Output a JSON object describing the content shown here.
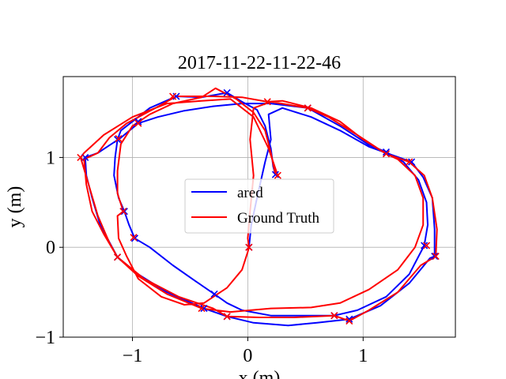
{
  "chart_data": {
    "type": "line",
    "title": "2017-11-22-11-22-46",
    "xlabel": "x (m)",
    "ylabel": "y (m)",
    "xlim": [
      -1.6,
      1.8
    ],
    "ylim": [
      -1.0,
      1.9
    ],
    "xticks": [
      -1,
      0,
      1
    ],
    "yticks": [
      -1,
      0,
      1
    ],
    "xtick_labels": [
      "−1",
      "0",
      "1"
    ],
    "ytick_labels": [
      "−1",
      "0",
      "1"
    ],
    "grid": true,
    "legend_position": "center",
    "series": [
      {
        "name": "ared",
        "color": "#0000ff",
        "marker": "x",
        "points": [
          [
            0.24,
            0.81
          ],
          [
            0.22,
            0.9
          ],
          [
            0.2,
            1.1
          ],
          [
            0.15,
            1.35
          ],
          [
            0.08,
            1.53
          ],
          [
            -0.05,
            1.62
          ],
          [
            -0.18,
            1.72
          ],
          [
            -0.4,
            1.67
          ],
          [
            -0.62,
            1.68
          ],
          [
            -0.85,
            1.55
          ],
          [
            -1.0,
            1.4
          ],
          [
            -1.1,
            1.3
          ],
          [
            -1.13,
            1.2
          ],
          [
            -1.15,
            1.0
          ],
          [
            -1.16,
            0.8
          ],
          [
            -1.12,
            0.55
          ],
          [
            -1.07,
            0.4
          ],
          [
            -1.03,
            0.25
          ],
          [
            -0.98,
            0.1
          ],
          [
            -0.85,
            0.0
          ],
          [
            -0.65,
            -0.2
          ],
          [
            -0.45,
            -0.38
          ],
          [
            -0.29,
            -0.52
          ],
          [
            -0.18,
            -0.62
          ],
          [
            -0.05,
            -0.7
          ],
          [
            0.2,
            -0.76
          ],
          [
            0.55,
            -0.76
          ],
          [
            0.75,
            -0.76
          ],
          [
            0.95,
            -0.7
          ],
          [
            1.2,
            -0.55
          ],
          [
            1.4,
            -0.3
          ],
          [
            1.53,
            0.02
          ],
          [
            1.56,
            0.25
          ],
          [
            1.55,
            0.5
          ],
          [
            1.48,
            0.75
          ],
          [
            1.35,
            0.95
          ],
          [
            1.2,
            1.06
          ],
          [
            1.05,
            1.14
          ],
          [
            0.8,
            1.35
          ],
          [
            0.52,
            1.55
          ],
          [
            0.2,
            1.6
          ],
          [
            -0.05,
            1.6
          ],
          [
            -0.3,
            1.57
          ],
          [
            -0.55,
            1.52
          ],
          [
            -0.78,
            1.45
          ],
          [
            -0.95,
            1.38
          ],
          [
            -1.1,
            1.22
          ],
          [
            -1.3,
            1.05
          ],
          [
            -1.41,
            1.0
          ],
          [
            -1.4,
            0.8
          ],
          [
            -1.35,
            0.55
          ],
          [
            -1.28,
            0.25
          ],
          [
            -1.13,
            -0.11
          ],
          [
            -0.95,
            -0.3
          ],
          [
            -0.7,
            -0.5
          ],
          [
            -0.38,
            -0.68
          ],
          [
            -0.18,
            -0.77
          ],
          [
            0.05,
            -0.84
          ],
          [
            0.35,
            -0.87
          ],
          [
            0.6,
            -0.84
          ],
          [
            0.88,
            -0.8
          ],
          [
            1.15,
            -0.65
          ],
          [
            1.4,
            -0.4
          ],
          [
            1.58,
            -0.12
          ],
          [
            1.62,
            -0.1
          ],
          [
            1.62,
            0.2
          ],
          [
            1.6,
            0.55
          ],
          [
            1.52,
            0.78
          ],
          [
            1.42,
            0.95
          ],
          [
            1.2,
            1.05
          ],
          [
            1.05,
            1.12
          ],
          [
            0.8,
            1.3
          ],
          [
            0.55,
            1.45
          ],
          [
            0.3,
            1.55
          ],
          [
            0.18,
            1.48
          ],
          [
            0.2,
            1.2
          ],
          [
            0.15,
            0.95
          ],
          [
            0.08,
            0.55
          ],
          [
            0.03,
            0.25
          ],
          [
            0.01,
            0.0
          ]
        ],
        "marker_points": [
          [
            0.24,
            0.81
          ],
          [
            -0.18,
            1.72
          ],
          [
            -0.62,
            1.68
          ],
          [
            -0.95,
            1.4
          ],
          [
            -1.13,
            1.2
          ],
          [
            -1.07,
            0.4
          ],
          [
            -0.98,
            0.1
          ],
          [
            -0.29,
            -0.52
          ],
          [
            0.75,
            -0.76
          ],
          [
            1.53,
            0.02
          ],
          [
            1.2,
            1.06
          ],
          [
            0.52,
            1.55
          ],
          [
            -1.41,
            1.0
          ],
          [
            -1.13,
            -0.11
          ],
          [
            -0.38,
            -0.68
          ],
          [
            -0.18,
            -0.77
          ],
          [
            0.88,
            -0.8
          ],
          [
            1.62,
            -0.1
          ],
          [
            1.42,
            0.95
          ],
          [
            0.01,
            0.0
          ]
        ]
      },
      {
        "name": "Ground Truth",
        "color": "#ff0000",
        "marker": "x",
        "points": [
          [
            0.01,
            0.0
          ],
          [
            0.0,
            -0.05
          ],
          [
            -0.05,
            -0.25
          ],
          [
            -0.18,
            -0.45
          ],
          [
            -0.38,
            -0.62
          ],
          [
            -0.55,
            -0.64
          ],
          [
            -0.75,
            -0.55
          ],
          [
            -0.95,
            -0.35
          ],
          [
            -1.05,
            -0.1
          ],
          [
            -1.12,
            0.1
          ],
          [
            -1.13,
            0.35
          ],
          [
            -1.08,
            0.4
          ],
          [
            -1.13,
            0.6
          ],
          [
            -1.13,
            0.85
          ],
          [
            -1.1,
            1.15
          ],
          [
            -1.0,
            1.35
          ],
          [
            -0.85,
            1.48
          ],
          [
            -0.65,
            1.6
          ],
          [
            -0.4,
            1.67
          ],
          [
            -0.28,
            1.77
          ],
          [
            -0.1,
            1.65
          ],
          [
            0.05,
            1.5
          ],
          [
            0.15,
            1.3
          ],
          [
            0.2,
            1.05
          ],
          [
            0.24,
            0.81
          ],
          [
            0.26,
            0.8
          ],
          [
            0.18,
            1.1
          ],
          [
            0.05,
            1.45
          ],
          [
            -0.15,
            1.65
          ],
          [
            -0.4,
            1.63
          ],
          [
            -0.7,
            1.6
          ],
          [
            -1.0,
            1.45
          ],
          [
            -1.25,
            1.25
          ],
          [
            -1.42,
            1.05
          ],
          [
            -1.45,
            1.0
          ],
          [
            -1.38,
            0.7
          ],
          [
            -1.3,
            0.35
          ],
          [
            -1.2,
            0.05
          ],
          [
            -1.13,
            -0.11
          ],
          [
            -0.95,
            -0.32
          ],
          [
            -0.7,
            -0.52
          ],
          [
            -0.4,
            -0.68
          ],
          [
            -0.15,
            -0.72
          ],
          [
            0.2,
            -0.68
          ],
          [
            0.55,
            -0.67
          ],
          [
            0.8,
            -0.62
          ],
          [
            1.05,
            -0.47
          ],
          [
            1.3,
            -0.25
          ],
          [
            1.45,
            0.0
          ],
          [
            1.52,
            0.25
          ],
          [
            1.52,
            0.55
          ],
          [
            1.45,
            0.8
          ],
          [
            1.3,
            0.98
          ],
          [
            1.2,
            1.04
          ],
          [
            1.0,
            1.2
          ],
          [
            0.8,
            1.4
          ],
          [
            0.55,
            1.55
          ],
          [
            0.3,
            1.63
          ],
          [
            0.17,
            1.62
          ],
          [
            -0.05,
            1.67
          ],
          [
            -0.3,
            1.68
          ],
          [
            -0.62,
            1.68
          ],
          [
            -0.8,
            1.55
          ],
          [
            -1.05,
            1.38
          ],
          [
            -1.2,
            1.22
          ],
          [
            -1.3,
            1.05
          ],
          [
            -1.42,
            0.98
          ],
          [
            -1.4,
            0.7
          ],
          [
            -1.35,
            0.4
          ],
          [
            -1.25,
            0.15
          ],
          [
            -1.13,
            -0.11
          ],
          [
            -0.9,
            -0.35
          ],
          [
            -0.6,
            -0.55
          ],
          [
            -0.3,
            -0.68
          ],
          [
            -0.18,
            -0.77
          ],
          [
            0.1,
            -0.78
          ],
          [
            0.4,
            -0.78
          ],
          [
            0.75,
            -0.76
          ],
          [
            0.88,
            -0.82
          ],
          [
            1.05,
            -0.7
          ],
          [
            1.3,
            -0.5
          ],
          [
            1.5,
            -0.2
          ],
          [
            1.63,
            -0.1
          ],
          [
            1.64,
            0.2
          ],
          [
            1.6,
            0.55
          ],
          [
            1.53,
            0.8
          ],
          [
            1.4,
            0.95
          ],
          [
            1.2,
            1.04
          ],
          [
            0.95,
            1.25
          ],
          [
            0.7,
            1.45
          ],
          [
            0.52,
            1.55
          ],
          [
            0.2,
            1.62
          ],
          [
            0.05,
            1.55
          ],
          [
            0.02,
            1.2
          ],
          [
            0.05,
            0.8
          ],
          [
            0.02,
            0.4
          ],
          [
            0.0,
            0.1
          ],
          [
            0.01,
            0.0
          ]
        ],
        "marker_points": [
          [
            0.26,
            0.8
          ],
          [
            -0.65,
            1.68
          ],
          [
            -0.95,
            1.38
          ],
          [
            -1.12,
            1.21
          ],
          [
            -1.08,
            0.4
          ],
          [
            -0.99,
            0.11
          ],
          [
            -1.45,
            1.0
          ],
          [
            -1.13,
            -0.11
          ],
          [
            -0.4,
            -0.68
          ],
          [
            -0.18,
            -0.77
          ],
          [
            0.17,
            1.62
          ],
          [
            0.52,
            1.55
          ],
          [
            1.2,
            1.04
          ],
          [
            1.4,
            0.95
          ],
          [
            1.55,
            0.02
          ],
          [
            1.63,
            -0.1
          ],
          [
            0.75,
            -0.76
          ],
          [
            0.88,
            -0.82
          ],
          [
            0.01,
            0.0
          ]
        ]
      }
    ]
  }
}
